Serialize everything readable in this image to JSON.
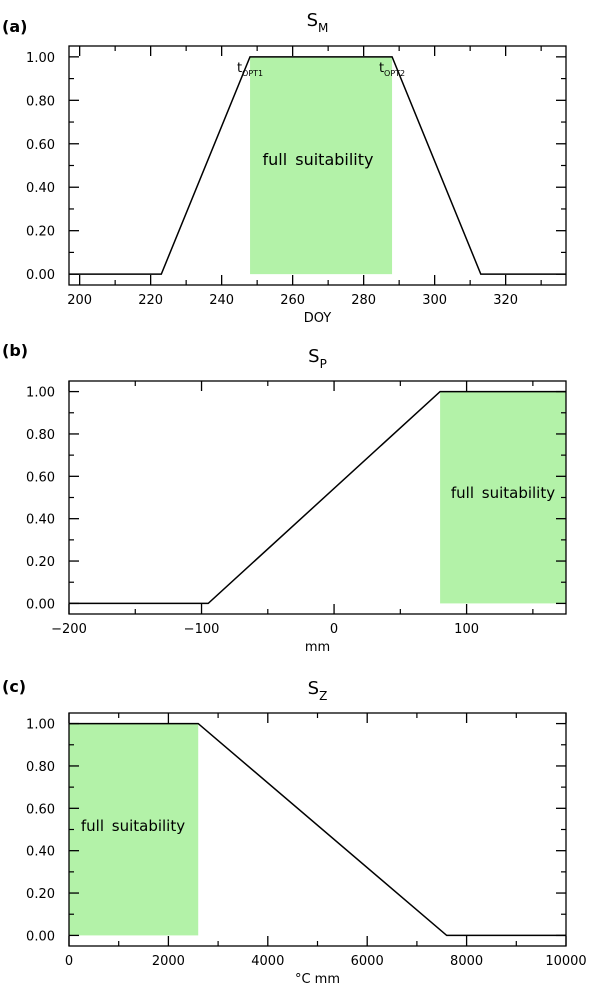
{
  "chart_data": [
    {
      "panel_label": "(a)",
      "title": {
        "base": "S",
        "sub": "M"
      },
      "type": "line",
      "xlabel": "DOY",
      "ylabel": "",
      "xlim": [
        197,
        337
      ],
      "ylim": [
        -0.05,
        1.05
      ],
      "xticks": [
        200,
        220,
        240,
        260,
        280,
        300,
        320
      ],
      "xtick_labels": [
        "200",
        "220",
        "240",
        "260",
        "280",
        "300",
        "320"
      ],
      "yticks": [
        0,
        0.2,
        0.4,
        0.6,
        0.8,
        1.0
      ],
      "ytick_labels": [
        "0.00",
        "0.20",
        "0.40",
        "0.60",
        "0.80",
        "1.00"
      ],
      "series": [
        {
          "x": [
            197,
            223,
            248,
            288,
            313,
            337
          ],
          "y": [
            0,
            0,
            1,
            1,
            0,
            0
          ],
          "color": "#000000"
        }
      ],
      "shaded_region": {
        "x": [
          248,
          288
        ],
        "y": [
          0,
          1
        ],
        "color": "#b3f2a8",
        "label": "full suitability"
      },
      "annotations": [
        {
          "base": "t",
          "sub": "OPT1",
          "x": 248
        },
        {
          "base": "t",
          "sub": "OPT2",
          "x": 288
        }
      ]
    },
    {
      "panel_label": "(b)",
      "title": {
        "base": "S",
        "sub": "P"
      },
      "type": "line",
      "xlabel": "mm",
      "ylabel": "",
      "xlim": [
        -200,
        175
      ],
      "ylim": [
        -0.05,
        1.05
      ],
      "xticks": [
        -200,
        -100,
        0,
        100
      ],
      "xtick_labels": [
        "−200",
        "−100",
        "0",
        "100"
      ],
      "yticks": [
        0,
        0.2,
        0.4,
        0.6,
        0.8,
        1.0
      ],
      "ytick_labels": [
        "0.00",
        "0.20",
        "0.40",
        "0.60",
        "0.80",
        "1.00"
      ],
      "series": [
        {
          "x": [
            -200,
            -95,
            80,
            175
          ],
          "y": [
            0,
            0,
            1,
            1
          ],
          "color": "#000000"
        }
      ],
      "shaded_region": {
        "x": [
          80,
          175
        ],
        "y": [
          0,
          1
        ],
        "color": "#b3f2a8",
        "label": "full suitability"
      },
      "annotations": []
    },
    {
      "panel_label": "(c)",
      "title": {
        "base": "S",
        "sub": "Z"
      },
      "type": "line",
      "xlabel": "°C mm",
      "ylabel": "",
      "xlim": [
        0,
        10000
      ],
      "ylim": [
        -0.05,
        1.05
      ],
      "xticks": [
        0,
        2000,
        4000,
        6000,
        8000,
        10000
      ],
      "xtick_labels": [
        "0",
        "2000",
        "4000",
        "6000",
        "8000",
        "10000"
      ],
      "yticks": [
        0,
        0.2,
        0.4,
        0.6,
        0.8,
        1.0
      ],
      "ytick_labels": [
        "0.00",
        "0.20",
        "0.40",
        "0.60",
        "0.80",
        "1.00"
      ],
      "series": [
        {
          "x": [
            0,
            2600,
            7600,
            10000
          ],
          "y": [
            1,
            1,
            0,
            0
          ],
          "color": "#000000"
        }
      ],
      "shaded_region": {
        "x": [
          0,
          2600
        ],
        "y": [
          0,
          1
        ],
        "color": "#b3f2a8",
        "label": "full suitability"
      },
      "annotations": []
    }
  ]
}
